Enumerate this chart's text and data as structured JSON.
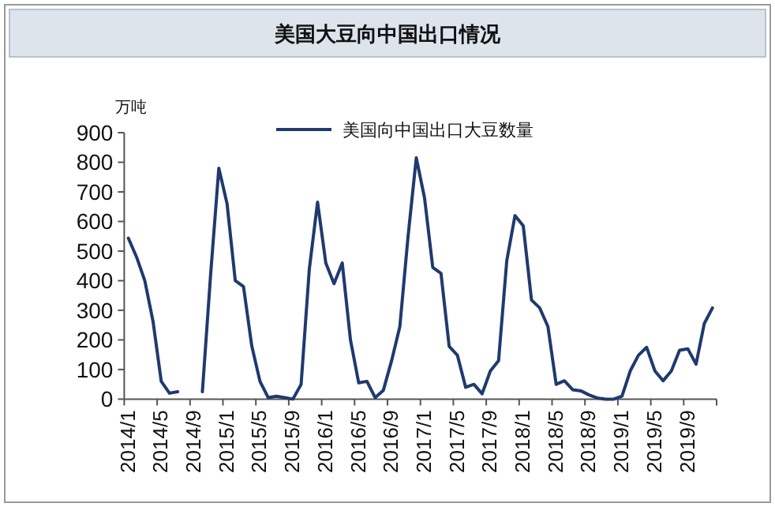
{
  "chart_data": {
    "type": "line",
    "title": "美国大豆向中国出口情况",
    "ylabel": "万吨",
    "categories": [
      "2014/1",
      null,
      null,
      null,
      "2014/5",
      null,
      null,
      null,
      "2014/9",
      null,
      null,
      null,
      "2015/1",
      null,
      null,
      null,
      "2015/5",
      null,
      null,
      null,
      "2015/9",
      null,
      null,
      null,
      "2016/1",
      null,
      null,
      null,
      "2016/5",
      null,
      null,
      null,
      "2016/9",
      null,
      null,
      null,
      "2017/1",
      null,
      null,
      null,
      "2017/5",
      null,
      null,
      null,
      "2017/9",
      null,
      null,
      null,
      "2018/1",
      null,
      null,
      null,
      "2018/5",
      null,
      null,
      null,
      "2018/9",
      null,
      null,
      null,
      "2019/1",
      null,
      null,
      null,
      "2019/5",
      null,
      null,
      null,
      "2019/9",
      null,
      null,
      null
    ],
    "series": [
      {
        "name": "美国向中国出口大豆数量",
        "color": "#1f3a6e",
        "values": [
          544,
          480,
          400,
          263,
          60,
          20,
          25,
          null,
          null,
          25,
          420,
          780,
          660,
          400,
          380,
          180,
          60,
          5,
          10,
          5,
          0,
          50,
          440,
          665,
          460,
          390,
          460,
          200,
          55,
          60,
          5,
          30,
          130,
          245,
          550,
          815,
          680,
          445,
          425,
          178,
          148,
          40,
          50,
          18,
          95,
          130,
          468,
          620,
          585,
          335,
          308,
          245,
          50,
          62,
          32,
          28,
          14,
          4,
          0,
          0,
          10,
          95,
          148,
          175,
          95,
          62,
          95,
          165,
          170,
          118,
          255,
          308
        ]
      }
    ],
    "ylim": [
      0,
      900
    ],
    "yticks": [
      0,
      100,
      200,
      300,
      400,
      500,
      600,
      700,
      800,
      900
    ],
    "grid": false,
    "legend": "top",
    "marker": "none",
    "line_style": "solid"
  }
}
